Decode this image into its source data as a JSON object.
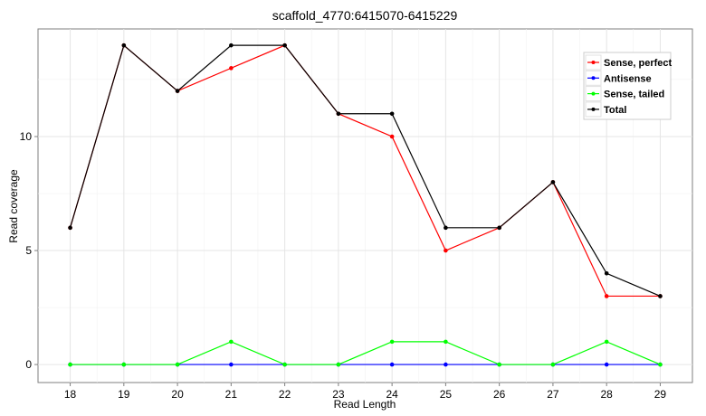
{
  "chart_data": {
    "type": "line",
    "title": "scaffold_4770:6415070-6415229",
    "xlabel": "Read Length",
    "ylabel": "Read coverage",
    "x": [
      18,
      19,
      20,
      21,
      22,
      23,
      24,
      25,
      26,
      27,
      28,
      29
    ],
    "xlim": [
      17.4,
      29.6
    ],
    "ylim": [
      -0.79,
      14.72
    ],
    "yticks": [
      0,
      5,
      10
    ],
    "grid": true,
    "legend_position": "top-right",
    "series": [
      {
        "name": "Sense, perfect",
        "color": "#ff0000",
        "values": [
          6,
          14,
          12,
          13,
          14,
          11,
          10,
          5,
          6,
          8,
          3,
          3
        ]
      },
      {
        "name": "Antisense",
        "color": "#0000ff",
        "values": [
          0,
          0,
          0,
          0,
          0,
          0,
          0,
          0,
          0,
          0,
          0,
          0
        ]
      },
      {
        "name": "Sense, tailed",
        "color": "#00ff00",
        "values": [
          0,
          0,
          0,
          1,
          0,
          0,
          1,
          1,
          0,
          0,
          1,
          0
        ]
      },
      {
        "name": "Total",
        "color": "#000000",
        "values": [
          6,
          14,
          12,
          14,
          14,
          11,
          11,
          6,
          6,
          8,
          4,
          3
        ]
      }
    ]
  }
}
